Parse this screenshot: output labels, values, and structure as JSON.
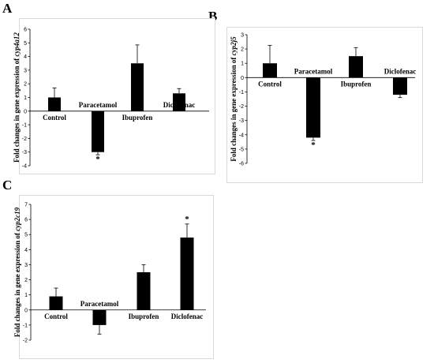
{
  "chart_data": [
    {
      "type": "bar",
      "panel_label": "A",
      "ylabel_prefix": "Fold changes in gene expression of ",
      "ylabel_gene": "cyp4a12",
      "ylim": [
        -4,
        6
      ],
      "yticks": [
        -4,
        -3,
        -2,
        -1,
        0,
        1,
        2,
        3,
        4,
        5,
        6
      ],
      "categories": [
        "Control",
        "Paracetamol",
        "Ibuprofen",
        "Diclofenac"
      ],
      "values": [
        1.0,
        -3.0,
        3.5,
        1.3
      ],
      "errors": [
        0.7,
        0.2,
        1.35,
        0.35
      ],
      "significance": [
        "",
        "*",
        "",
        ""
      ],
      "label_position": [
        "below",
        "above",
        "below",
        "above"
      ],
      "grid": false,
      "bar_color": "#000000"
    },
    {
      "type": "bar",
      "panel_label": "B",
      "ylabel_prefix": "Fold changes in gene expression of ",
      "ylabel_gene": "cyp2j5",
      "ylim": [
        -6,
        3
      ],
      "yticks": [
        -6,
        -5,
        -4,
        -3,
        -2,
        -1,
        0,
        1,
        2,
        3
      ],
      "categories": [
        "Control",
        "Paracetamol",
        "Ibuprofen",
        "Diclofenac"
      ],
      "values": [
        1.0,
        -4.2,
        1.5,
        -1.2
      ],
      "errors": [
        1.25,
        0.2,
        0.6,
        0.2
      ],
      "significance": [
        "",
        "*",
        "",
        ""
      ],
      "label_position": [
        "below",
        "above",
        "below",
        "above"
      ],
      "grid": false,
      "bar_color": "#000000"
    },
    {
      "type": "bar",
      "panel_label": "C",
      "ylabel_prefix": "Fold changes in gene expression of ",
      "ylabel_gene": "cyp2c19",
      "ylim": [
        -2,
        7
      ],
      "yticks": [
        -2,
        -1,
        0,
        1,
        2,
        3,
        4,
        5,
        6,
        7
      ],
      "categories": [
        "Control",
        "Paracetamol",
        "Ibuprofen",
        "Diclofenac"
      ],
      "values": [
        0.9,
        -1.0,
        2.5,
        4.8
      ],
      "errors": [
        0.55,
        0.6,
        0.5,
        0.9
      ],
      "significance": [
        "",
        "",
        "",
        "*"
      ],
      "label_position": [
        "below",
        "above",
        "below",
        "below"
      ],
      "grid": false,
      "bar_color": "#000000"
    }
  ]
}
